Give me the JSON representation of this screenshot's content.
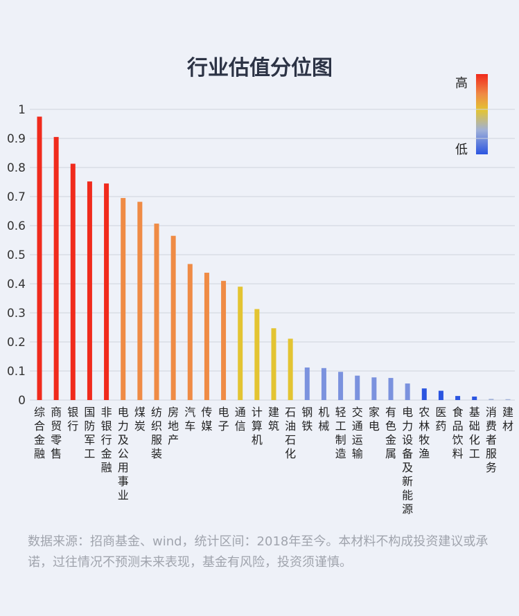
{
  "chart_data": {
    "type": "bar",
    "title": "行业估值分位图",
    "ylim": [
      0,
      1
    ],
    "yticks": [
      0,
      0.1,
      0.2,
      0.3,
      0.4,
      0.5,
      0.6,
      0.7,
      0.8,
      0.9,
      1
    ],
    "ytick_labels": [
      "0",
      "0.1",
      "0.2",
      "0.3",
      "0.4",
      "0.5",
      "0.6",
      "0.7",
      "0.8",
      "0.9",
      "1"
    ],
    "grid": true,
    "legend": {
      "high_label": "高",
      "low_label": "低",
      "placement": "top-right",
      "colors": [
        "#f02a1c",
        "#e3c432",
        "#9fb0d8",
        "#2b55e0"
      ]
    },
    "categories": [
      "综合金融",
      "商贸零售",
      "银行",
      "国防军工",
      "非银行金融",
      "电力及公用事业",
      "煤炭",
      "纺织服装",
      "房地产",
      "汽车",
      "传媒",
      "电子",
      "通信",
      "计算机",
      "建筑",
      "石油石化",
      "钢铁",
      "机械",
      "轻工制造",
      "交通运输",
      "家电",
      "有色金属",
      "电力设备及新能源",
      "农林牧渔",
      "医药",
      "食品饮料",
      "基础化工",
      "消费者服务",
      "建材"
    ],
    "values": [
      0.975,
      0.905,
      0.813,
      0.752,
      0.745,
      0.695,
      0.682,
      0.607,
      0.565,
      0.468,
      0.438,
      0.41,
      0.39,
      0.313,
      0.247,
      0.211,
      0.112,
      0.11,
      0.097,
      0.084,
      0.078,
      0.076,
      0.057,
      0.04,
      0.032,
      0.014,
      0.012,
      0.004,
      0.003
    ],
    "colors": [
      "#f02a1c",
      "#f02a1c",
      "#f02a1c",
      "#f02a1c",
      "#f02a1c",
      "#ef8b45",
      "#ef8b45",
      "#ef8b45",
      "#ef8b45",
      "#ef8b45",
      "#ef8b45",
      "#ef8b45",
      "#e3c432",
      "#e3c432",
      "#e3c432",
      "#e3c432",
      "#7b92de",
      "#7b92de",
      "#7b92de",
      "#7b92de",
      "#7b92de",
      "#7b92de",
      "#7b92de",
      "#2b55e0",
      "#2b55e0",
      "#2b55e0",
      "#2b55e0",
      "#9fb0d8",
      "#9fb0d8"
    ]
  },
  "footnote": "数据来源：招商基金、wind，统计区间：2018年至今。本材料不构成投资建议或承诺，过往情况不预测未来表现，基金有风险，投资须谨慎。"
}
